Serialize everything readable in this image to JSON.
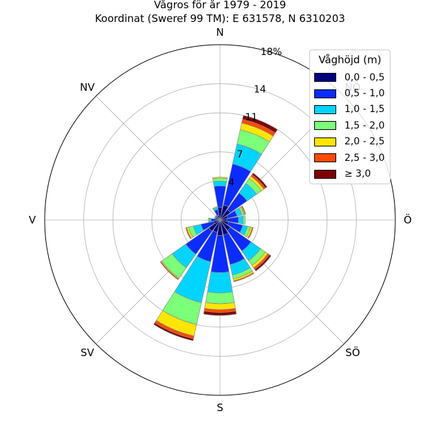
{
  "chart_data": {
    "type": "windrose",
    "title": "Vågros för år 1979 - 2019",
    "subtitle": "Koordinat (Sweref 99 TM): E 631578, N 6310203",
    "directions": [
      "N",
      "NNÖ",
      "NÖ",
      "ÖNÖ",
      "Ö",
      "ÖSÖ",
      "SÖ",
      "SSÖ",
      "S",
      "SSV",
      "SV",
      "VSV",
      "V",
      "VNV",
      "NV",
      "NNV"
    ],
    "direction_labels": [
      {
        "label": "N",
        "angle": 0
      },
      {
        "label": "NÖ",
        "angle": 45
      },
      {
        "label": "Ö",
        "angle": 90
      },
      {
        "label": "SÖ",
        "angle": 135
      },
      {
        "label": "S",
        "angle": 180
      },
      {
        "label": "SV",
        "angle": 225
      },
      {
        "label": "V",
        "angle": 270
      },
      {
        "label": "NV",
        "angle": 315
      }
    ],
    "radial_ticks": [
      4,
      7,
      11,
      14,
      18
    ],
    "radial_tick_labels": [
      "4",
      "7",
      "11",
      "14",
      "18%"
    ],
    "rmax": 18,
    "legend": {
      "title": "Våghöjd (m)",
      "position": "top-right"
    },
    "series": [
      {
        "name": "0,0 - 0,5",
        "color": "#00007f",
        "values": [
          1.3,
          1.6,
          1.3,
          0.8,
          0.7,
          0.9,
          1.3,
          1.6,
          1.6,
          1.3,
          1.4,
          0.7,
          0.3,
          0.2,
          0.3,
          0.5
        ]
      },
      {
        "name": "0,5 - 1,0",
        "color": "#0a2cff",
        "values": [
          2.2,
          4.3,
          2.1,
          1.0,
          1.2,
          1.5,
          2.6,
          3.1,
          3.8,
          3.1,
          2.9,
          1.3,
          0.6,
          0.3,
          0.2,
          0.6
        ]
      },
      {
        "name": "1,0 - 1,5",
        "color": "#00d4ff",
        "values": [
          0.5,
          2.1,
          1.2,
          0.5,
          0.5,
          0.5,
          1.2,
          1.1,
          2.1,
          4.3,
          1.7,
          0.8,
          0.2,
          0.1,
          0.1,
          0.2
        ]
      },
      {
        "name": "1,5 - 2,0",
        "color": "#7cff79",
        "values": [
          0.3,
          1.5,
          0.6,
          0.2,
          0.2,
          0.3,
          0.6,
          0.4,
          1.1,
          2.3,
          1.3,
          0.5,
          0.1,
          0.0,
          0.0,
          0.1
        ]
      },
      {
        "name": "2,0 - 2,5",
        "color": "#ffe600",
        "values": [
          0.1,
          0.7,
          0.3,
          0.1,
          0.0,
          0.2,
          0.3,
          0.2,
          0.6,
          1.2,
          0.1,
          0.2,
          0.0,
          0.0,
          0.0,
          0.0
        ]
      },
      {
        "name": "2,5 - 3,0",
        "color": "#ff4a00",
        "values": [
          0.0,
          0.4,
          0.2,
          0.1,
          0.0,
          0.1,
          0.2,
          0.1,
          0.3,
          0.3,
          0.1,
          0.1,
          0.0,
          0.0,
          0.0,
          0.0
        ]
      },
      {
        "name": "≥ 3,0",
        "color": "#7f0000",
        "values": [
          0.0,
          0.4,
          0.2,
          0.0,
          0.0,
          0.0,
          0.2,
          0.0,
          0.3,
          0.2,
          0.0,
          0.0,
          0.0,
          0.0,
          0.0,
          0.0
        ]
      }
    ],
    "grid": true
  }
}
